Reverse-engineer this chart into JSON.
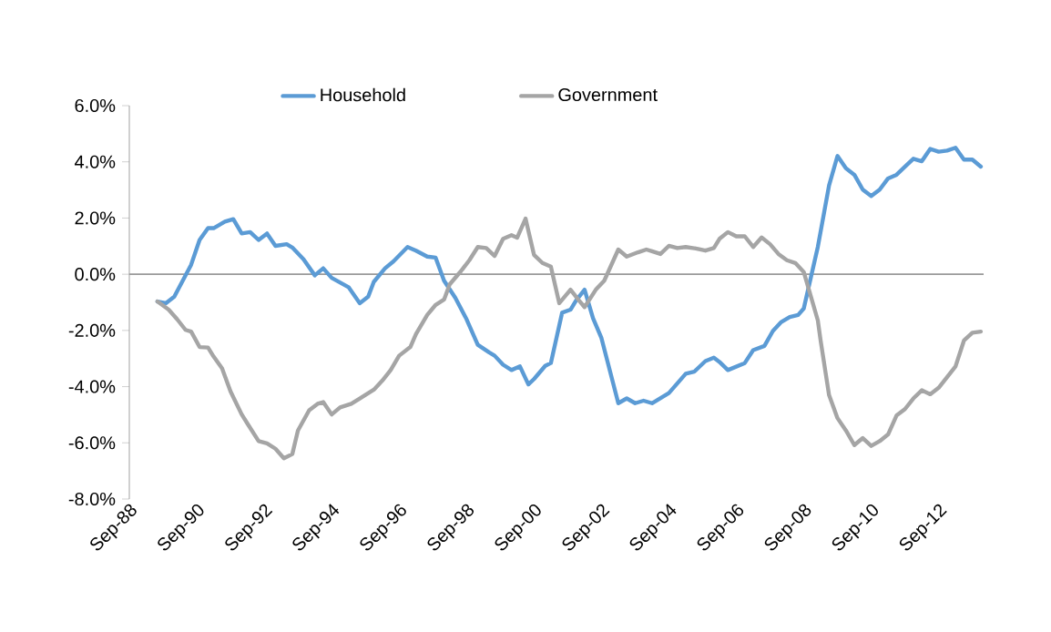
{
  "chart_data": {
    "type": "line",
    "legend": "top",
    "marker": "none",
    "line_style": "solid",
    "xlim": [
      "1988-09",
      "2014-01"
    ],
    "xticks": [
      {
        "value": "1988-09",
        "label": "Sep-88"
      },
      {
        "value": "1990-09",
        "label": "Sep-90"
      },
      {
        "value": "1992-09",
        "label": "Sep-92"
      },
      {
        "value": "1994-09",
        "label": "Sep-94"
      },
      {
        "value": "1996-09",
        "label": "Sep-96"
      },
      {
        "value": "1998-09",
        "label": "Sep-98"
      },
      {
        "value": "2000-09",
        "label": "Sep-00"
      },
      {
        "value": "2002-09",
        "label": "Sep-02"
      },
      {
        "value": "2004-09",
        "label": "Sep-04"
      },
      {
        "value": "2006-09",
        "label": "Sep-06"
      },
      {
        "value": "2008-09",
        "label": "Sep-08"
      },
      {
        "value": "2010-09",
        "label": "Sep-10"
      },
      {
        "value": "2012-09",
        "label": "Sep-12"
      }
    ],
    "ylim": [
      -8,
      6
    ],
    "yticks": [
      {
        "value": -8,
        "label": "-8.0%"
      },
      {
        "value": -6,
        "label": "-6.0%"
      },
      {
        "value": -4,
        "label": "-4.0%"
      },
      {
        "value": -2,
        "label": "-2.0%"
      },
      {
        "value": 0,
        "label": "0.0%"
      },
      {
        "value": 2,
        "label": "2.0%"
      },
      {
        "value": 4,
        "label": "4.0%"
      },
      {
        "value": 6,
        "label": "6.0%"
      }
    ],
    "series": [
      {
        "name": "Household",
        "color": "#5b9bd5",
        "x": [
          "1989-07",
          "1989-10",
          "1990-01",
          "1990-07",
          "1990-10",
          "1991-01",
          "1991-03",
          "1991-07",
          "1991-10",
          "1992-01",
          "1992-04",
          "1992-07",
          "1992-10",
          "1993-01",
          "1993-05",
          "1993-07",
          "1993-11",
          "1994-03",
          "1994-06",
          "1994-09",
          "1995-03",
          "1995-07",
          "1995-10",
          "1995-12",
          "1996-04",
          "1996-07",
          "1996-12",
          "1997-03",
          "1997-07",
          "1997-10",
          "1998-01",
          "1998-05",
          "1998-09",
          "1999-01",
          "1999-05",
          "1999-07",
          "1999-10",
          "2000-01",
          "2000-04",
          "2000-07",
          "2000-09",
          "2001-01",
          "2001-03",
          "2001-07",
          "2001-10",
          "2001-12",
          "2002-03",
          "2002-06",
          "2002-09",
          "2003-03",
          "2003-06",
          "2003-09",
          "2003-12",
          "2004-03",
          "2004-09",
          "2005-03",
          "2005-06",
          "2005-10",
          "2006-01",
          "2006-03",
          "2006-06",
          "2006-12",
          "2007-03",
          "2007-07",
          "2007-10",
          "2008-01",
          "2008-04",
          "2008-07",
          "2008-09",
          "2009-02",
          "2009-06",
          "2009-09",
          "2009-12",
          "2010-03",
          "2010-06",
          "2010-09",
          "2010-12",
          "2011-03",
          "2011-06",
          "2011-10",
          "2011-12",
          "2012-03",
          "2012-06",
          "2012-09",
          "2012-12",
          "2013-03",
          "2013-06",
          "2013-09",
          "2013-12"
        ],
        "values": [
          -0.97,
          -1.03,
          -0.8,
          0.34,
          1.22,
          1.64,
          1.64,
          1.87,
          1.96,
          1.45,
          1.5,
          1.22,
          1.45,
          1.01,
          1.07,
          0.95,
          0.53,
          -0.04,
          0.21,
          -0.13,
          -0.46,
          -1.03,
          -0.8,
          -0.27,
          0.21,
          0.46,
          0.97,
          0.84,
          0.63,
          0.59,
          -0.23,
          -0.84,
          -1.6,
          -2.51,
          -2.78,
          -2.9,
          -3.22,
          -3.41,
          -3.28,
          -3.92,
          -3.73,
          -3.26,
          -3.16,
          -1.37,
          -1.26,
          -0.93,
          -0.55,
          -1.56,
          -2.27,
          -4.59,
          -4.42,
          -4.59,
          -4.5,
          -4.59,
          -4.23,
          -3.54,
          -3.47,
          -3.09,
          -2.97,
          -3.12,
          -3.41,
          -3.16,
          -2.7,
          -2.55,
          -2.02,
          -1.7,
          -1.52,
          -1.45,
          -1.22,
          0.97,
          3.16,
          4.21,
          3.77,
          3.54,
          3.01,
          2.78,
          3.01,
          3.41,
          3.54,
          3.92,
          4.11,
          4.02,
          4.46,
          4.36,
          4.4,
          4.5,
          4.08,
          4.08,
          3.83
        ]
      },
      {
        "name": "Government",
        "color": "#a5a5a5",
        "x": [
          "1989-07",
          "1989-11",
          "1990-02",
          "1990-05",
          "1990-07",
          "1990-10",
          "1991-01",
          "1991-03",
          "1991-06",
          "1991-09",
          "1992-01",
          "1992-03",
          "1992-07",
          "1992-10",
          "1993-01",
          "1993-04",
          "1993-07",
          "1993-09",
          "1994-01",
          "1994-04",
          "1994-06",
          "1994-09",
          "1994-12",
          "1995-04",
          "1995-07",
          "1995-12",
          "1996-03",
          "1996-06",
          "1996-09",
          "1997-01",
          "1997-03",
          "1997-07",
          "1997-10",
          "1998-01",
          "1998-03",
          "1998-07",
          "1998-10",
          "1999-01",
          "1999-04",
          "1999-07",
          "1999-10",
          "2000-01",
          "2000-03",
          "2000-06",
          "2000-09",
          "2000-12",
          "2001-03",
          "2001-06",
          "2001-10",
          "2002-01",
          "2002-03",
          "2002-07",
          "2002-10",
          "2003-03",
          "2003-06",
          "2003-10",
          "2004-01",
          "2004-03",
          "2004-06",
          "2004-09",
          "2004-12",
          "2005-03",
          "2005-07",
          "2005-10",
          "2006-01",
          "2006-03",
          "2006-06",
          "2006-09",
          "2006-12",
          "2007-03",
          "2007-06",
          "2007-09",
          "2007-12",
          "2008-03",
          "2008-06",
          "2008-09",
          "2008-11",
          "2009-02",
          "2009-03",
          "2009-06",
          "2009-09",
          "2009-12",
          "2010-03",
          "2010-06",
          "2010-09",
          "2010-12",
          "2011-03",
          "2011-06",
          "2011-09",
          "2011-12",
          "2012-03",
          "2012-06",
          "2012-09",
          "2012-12",
          "2013-03",
          "2013-06",
          "2013-09",
          "2013-12"
        ],
        "values": [
          -0.97,
          -1.26,
          -1.6,
          -1.98,
          -2.04,
          -2.59,
          -2.61,
          -2.93,
          -3.35,
          -4.17,
          -4.99,
          -5.31,
          -5.94,
          -6.02,
          -6.21,
          -6.55,
          -6.4,
          -5.56,
          -4.84,
          -4.61,
          -4.55,
          -4.99,
          -4.74,
          -4.61,
          -4.42,
          -4.11,
          -3.79,
          -3.41,
          -2.9,
          -2.59,
          -2.13,
          -1.45,
          -1.09,
          -0.9,
          -0.36,
          0.11,
          0.5,
          0.97,
          0.93,
          0.65,
          1.26,
          1.39,
          1.3,
          1.98,
          0.69,
          0.4,
          0.27,
          -1.03,
          -0.55,
          -0.93,
          -1.17,
          -0.55,
          -0.23,
          0.88,
          0.63,
          0.78,
          0.88,
          0.82,
          0.72,
          1.01,
          0.93,
          0.97,
          0.91,
          0.84,
          0.93,
          1.26,
          1.5,
          1.35,
          1.35,
          0.97,
          1.31,
          1.07,
          0.72,
          0.5,
          0.4,
          0.08,
          -0.61,
          -1.64,
          -2.36,
          -4.3,
          -5.12,
          -5.56,
          -6.08,
          -5.83,
          -6.11,
          -5.94,
          -5.7,
          -5.03,
          -4.8,
          -4.42,
          -4.13,
          -4.27,
          -4.04,
          -3.66,
          -3.28,
          -2.36,
          -2.08,
          -2.04
        ]
      }
    ]
  }
}
